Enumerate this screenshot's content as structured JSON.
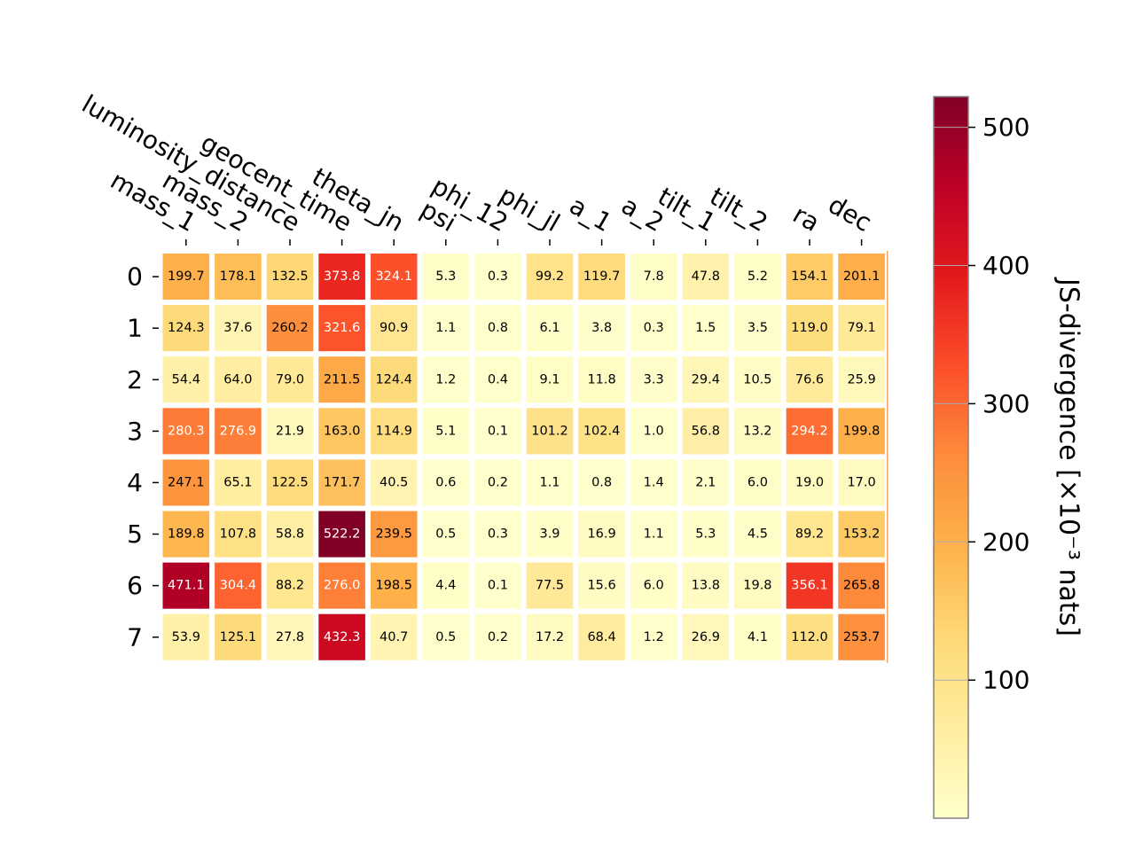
{
  "chart_data": {
    "type": "heatmap",
    "columns": [
      "mass_1",
      "mass_2",
      "luminosity_distance",
      "geocent_time",
      "theta_jn",
      "psi",
      "phi_12",
      "phi_jl",
      "a_1",
      "a_2",
      "tilt_1",
      "tilt_2",
      "ra",
      "dec"
    ],
    "rows": [
      "0",
      "1",
      "2",
      "3",
      "4",
      "5",
      "6",
      "7"
    ],
    "values": [
      [
        199.7,
        178.1,
        132.5,
        373.8,
        324.1,
        5.3,
        0.3,
        99.2,
        119.7,
        7.8,
        47.8,
        5.2,
        154.1,
        201.1
      ],
      [
        124.3,
        37.6,
        260.2,
        321.6,
        90.9,
        1.1,
        0.8,
        6.1,
        3.8,
        0.3,
        1.5,
        3.5,
        119.0,
        79.1
      ],
      [
        54.4,
        64.0,
        79.0,
        211.5,
        124.4,
        1.2,
        0.4,
        9.1,
        11.8,
        3.3,
        29.4,
        10.5,
        76.6,
        25.9
      ],
      [
        280.3,
        276.9,
        21.9,
        163.0,
        114.9,
        5.1,
        0.1,
        101.2,
        102.4,
        1.0,
        56.8,
        13.2,
        294.2,
        199.8
      ],
      [
        247.1,
        65.1,
        122.5,
        171.7,
        40.5,
        0.6,
        0.2,
        1.1,
        0.8,
        1.4,
        2.1,
        6.0,
        19.0,
        17.0
      ],
      [
        189.8,
        107.8,
        58.8,
        522.2,
        239.5,
        0.5,
        0.3,
        3.9,
        16.9,
        1.1,
        5.3,
        4.5,
        89.2,
        153.2
      ],
      [
        471.1,
        304.4,
        88.2,
        276.0,
        198.5,
        4.4,
        0.1,
        77.5,
        15.6,
        6.0,
        13.8,
        19.8,
        356.1,
        265.8
      ],
      [
        53.9,
        125.1,
        27.8,
        432.3,
        40.7,
        0.5,
        0.2,
        17.2,
        68.4,
        1.2,
        26.9,
        4.1,
        112.0,
        253.7
      ]
    ],
    "colormap": "YlOrRd",
    "colorbar": {
      "label": "JS-divergence [×10⁻³ nats]",
      "min": 0.1,
      "max": 522.2,
      "ticks": [
        100,
        200,
        300,
        400,
        500
      ]
    },
    "grid": false
  }
}
